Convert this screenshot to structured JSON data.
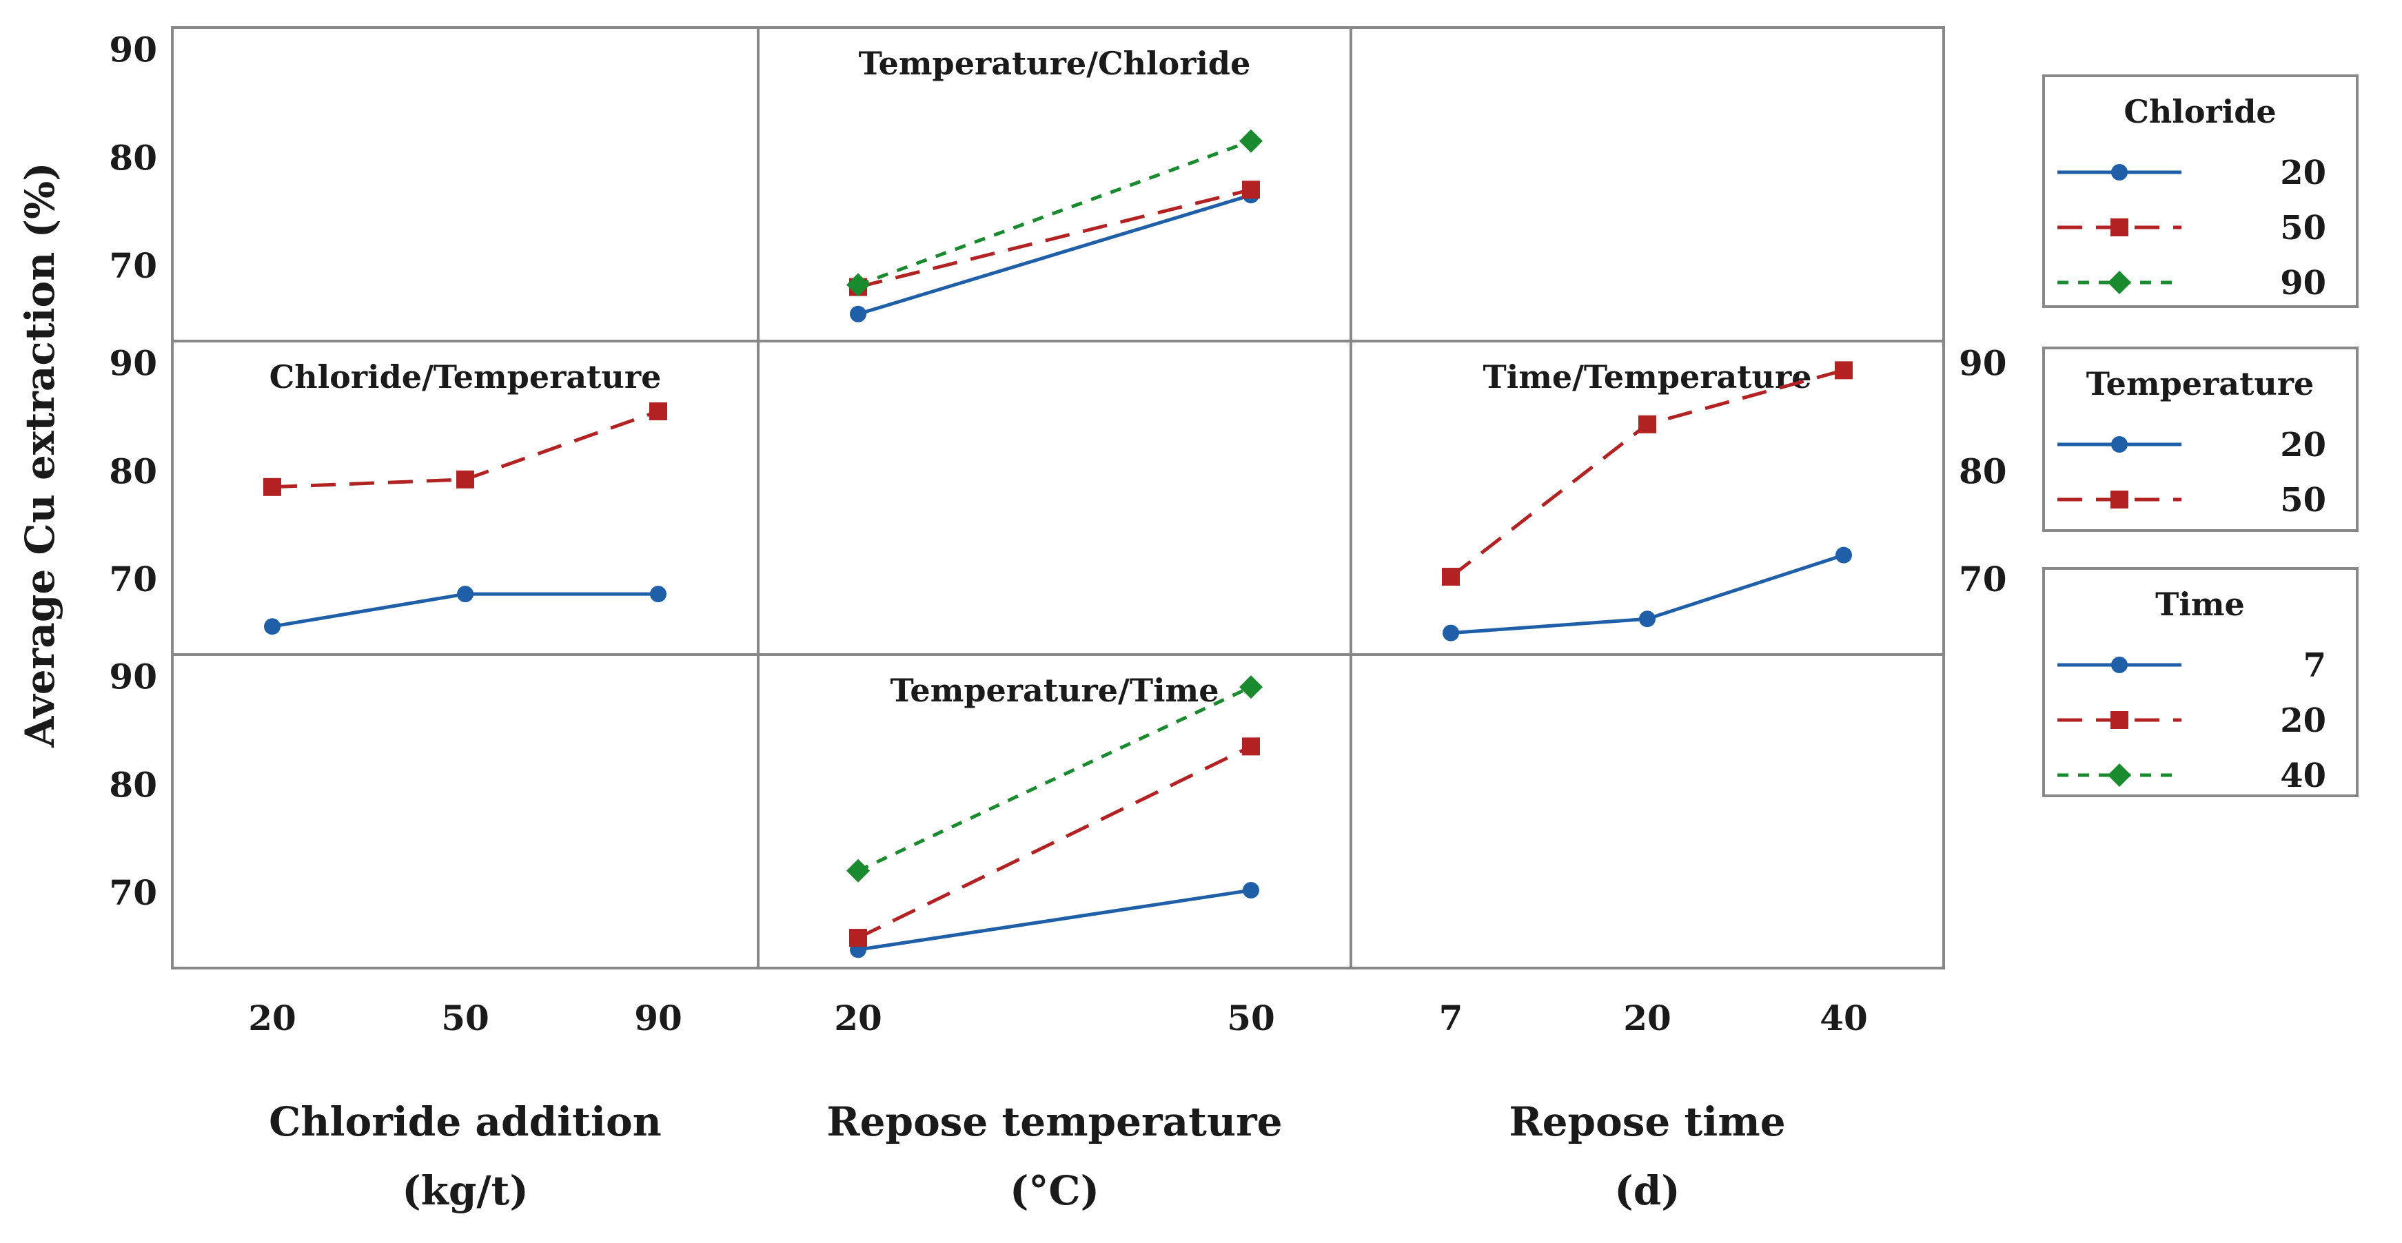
{
  "chart_data": {
    "type": "line",
    "title": "",
    "ylabel": "Average Cu extraction (%)",
    "colors": {
      "s1": "#1f5fa8",
      "s2": "#b22222",
      "s3": "#1a8a2e",
      "frame": "#888888"
    },
    "markers": [
      "circle-marker",
      "square-marker",
      "diamond-marker"
    ],
    "factors": [
      {
        "name": "Chloride",
        "levels": [
          "20",
          "50",
          "90"
        ],
        "axis_line1": "Chloride addition",
        "axis_line2": "(kg/t)"
      },
      {
        "name": "Temperature",
        "levels": [
          "20",
          "50"
        ],
        "axis_line1": "Repose temperature",
        "axis_line2": "(°C)"
      },
      {
        "name": "Time",
        "levels": [
          "7",
          "20",
          "40"
        ],
        "axis_line1": "Repose time",
        "axis_line2": "(d)"
      }
    ],
    "ytick_rows": [
      [
        "90",
        "80",
        "70"
      ],
      [
        "90",
        "80",
        "70"
      ],
      [
        "90",
        "80",
        "70"
      ]
    ],
    "right_ytick_row": 1,
    "right_yticks": [
      "90",
      "80",
      "70"
    ],
    "ylim": [
      63,
      92
    ],
    "yticks": [
      90,
      80,
      70
    ],
    "panels": [
      {
        "row": 0,
        "col": 1,
        "title": "Temperature/Chloride",
        "x_factor": 1,
        "series_factor": 0,
        "series": [
          {
            "name": "20",
            "values": [
              65.5,
              76.5
            ]
          },
          {
            "name": "50",
            "values": [
              68.0,
              77.0
            ]
          },
          {
            "name": "90",
            "values": [
              68.2,
              81.5
            ]
          }
        ]
      },
      {
        "row": 1,
        "col": 0,
        "title": "Chloride/Temperature",
        "x_factor": 0,
        "series_factor": 1,
        "series": [
          {
            "name": "20",
            "values": [
              65.6,
              68.6,
              68.6
            ]
          },
          {
            "name": "50",
            "values": [
              78.5,
              79.2,
              85.5
            ]
          }
        ]
      },
      {
        "row": 1,
        "col": 2,
        "title": "Time/Temperature",
        "x_factor": 2,
        "series_factor": 1,
        "series": [
          {
            "name": "20",
            "values": [
              65.0,
              66.3,
              72.2
            ]
          },
          {
            "name": "50",
            "values": [
              70.2,
              84.3,
              89.3
            ]
          }
        ]
      },
      {
        "row": 2,
        "col": 1,
        "title": "Temperature/Time",
        "x_factor": 1,
        "series_factor": 2,
        "series": [
          {
            "name": "7",
            "values": [
              64.7,
              70.2
            ]
          },
          {
            "name": "20",
            "values": [
              65.8,
              83.5
            ]
          },
          {
            "name": "40",
            "values": [
              72.0,
              89.0
            ]
          }
        ]
      }
    ],
    "legends": [
      {
        "title": "Chloride",
        "items": [
          "20",
          "50",
          "90"
        ]
      },
      {
        "title": "Temperature",
        "items": [
          "20",
          "50"
        ]
      },
      {
        "title": "Time",
        "items": [
          "7",
          "20",
          "40"
        ]
      }
    ]
  }
}
